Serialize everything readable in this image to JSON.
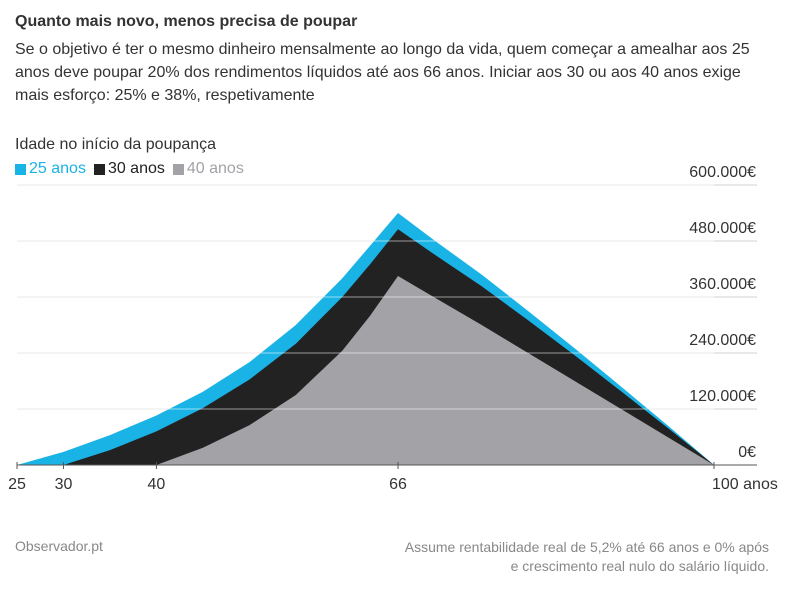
{
  "header": {
    "title": "Quanto mais novo, menos precisa de poupar",
    "subtitle": "Se o objetivo é ter o mesmo dinheiro mensalmente ao longo da vida, quem começar a amealhar aos 25 anos deve poupar 20% dos rendimentos líquidos até aos 66 anos. Iniciar aos 30 ou aos 40 anos exige mais esforço: 25% e 38%, respetivamente"
  },
  "legend_title": "Idade no início da poupança",
  "footer": {
    "source": "Observador.pt",
    "note_line1": "Assume rentabilidade real de 5,2% até 66 anos e 0% após",
    "note_line2": "e crescimento real nulo do salário líquido."
  },
  "chart_data": {
    "type": "area",
    "title": "",
    "xlabel": "",
    "ylabel": "",
    "x_ticks": [
      25,
      30,
      40,
      66,
      100
    ],
    "x_tick_labels": [
      "25",
      "30",
      "40",
      "66",
      "100 anos"
    ],
    "y_ticks": [
      0,
      120000,
      240000,
      360000,
      480000,
      600000
    ],
    "y_tick_labels": [
      "0€",
      "120.000€",
      "240.000€",
      "360.000€",
      "480.000€",
      "600.000€"
    ],
    "xlim": [
      25,
      100
    ],
    "ylim": [
      0,
      600000
    ],
    "grid": true,
    "legend_position": "top-left",
    "series": [
      {
        "name": "25 anos",
        "color": "#1ab3e6",
        "x": [
          25,
          30,
          35,
          40,
          45,
          50,
          55,
          60,
          63,
          66,
          70,
          75,
          80,
          85,
          90,
          95,
          100
        ],
        "values": [
          0,
          28000,
          64000,
          106000,
          157000,
          220000,
          300000,
          400000,
          470000,
          540000,
          480000,
          408000,
          330000,
          250000,
          168000,
          85000,
          0
        ]
      },
      {
        "name": "30 anos",
        "color": "#222222",
        "x": [
          30,
          35,
          40,
          45,
          50,
          55,
          60,
          63,
          66,
          70,
          75,
          80,
          85,
          90,
          95,
          100
        ],
        "values": [
          0,
          32000,
          72000,
          122000,
          183000,
          260000,
          360000,
          430000,
          505000,
          450000,
          383000,
          310000,
          235000,
          158000,
          80000,
          0
        ]
      },
      {
        "name": "40 anos",
        "color": "#a3a2a7",
        "x": [
          40,
          45,
          50,
          55,
          60,
          63,
          66,
          70,
          75,
          80,
          85,
          90,
          95,
          100
        ],
        "values": [
          0,
          37000,
          85000,
          150000,
          245000,
          320000,
          405000,
          358000,
          300000,
          240000,
          180000,
          120000,
          60000,
          0
        ]
      }
    ]
  }
}
